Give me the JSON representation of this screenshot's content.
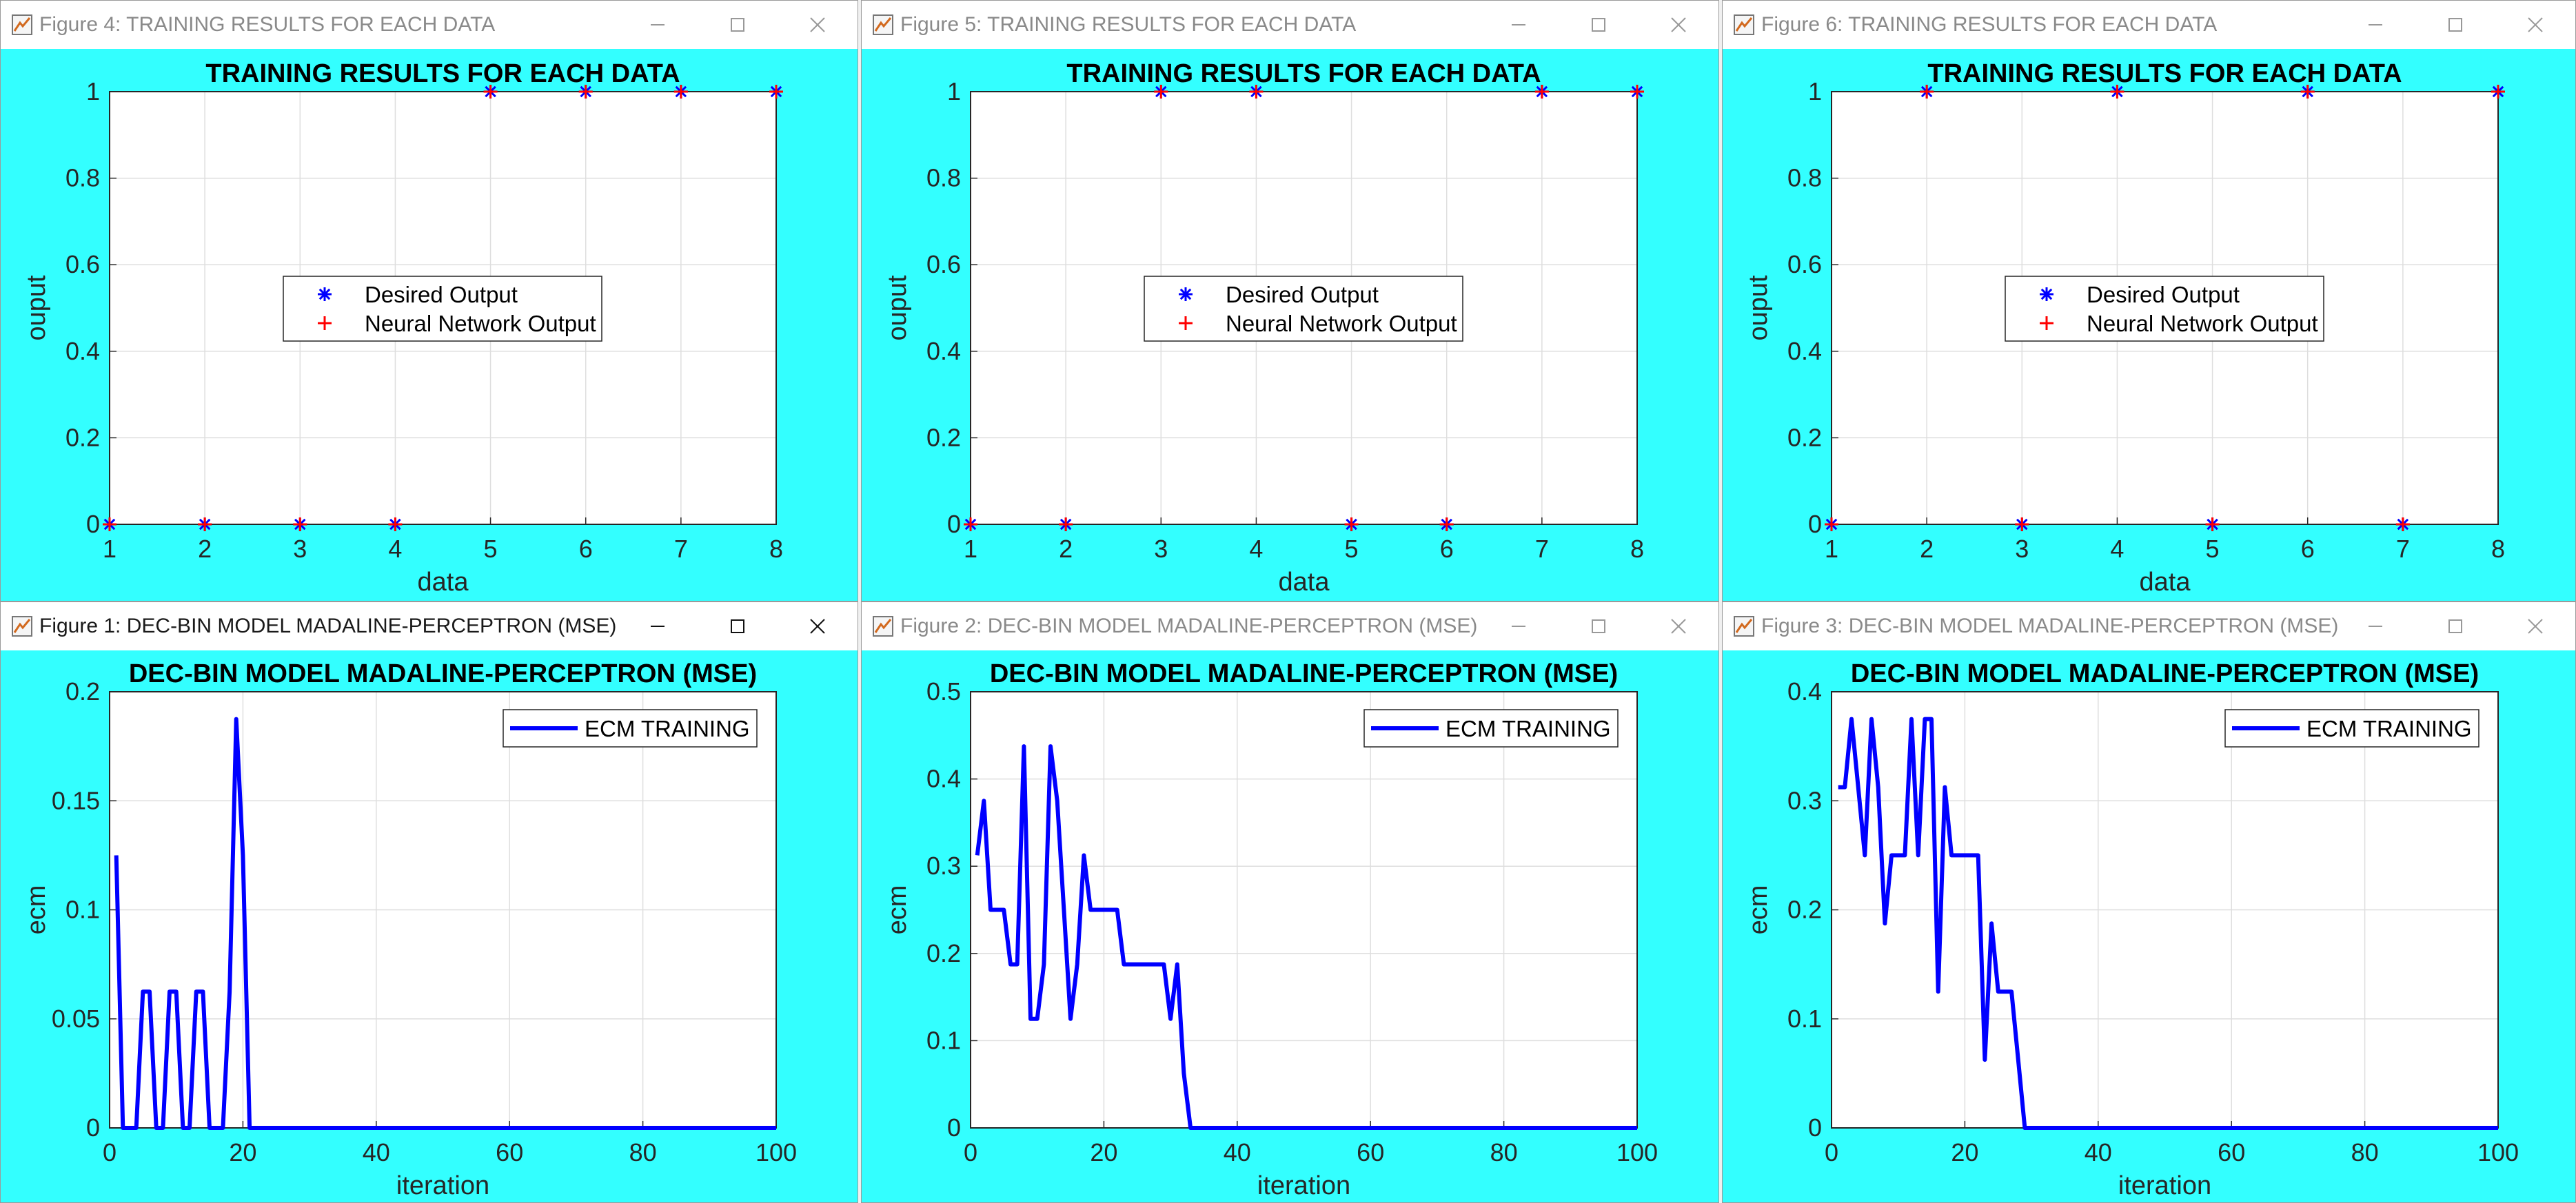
{
  "windows": [
    {
      "id": "fig4",
      "active": false,
      "title": "Figure 4: TRAINING RESULTS FOR EACH DATA",
      "plot_title": "TRAINING RESULTS FOR EACH DATA",
      "xlabel": "data",
      "ylabel": "ouput",
      "legend": [
        "Desired Output",
        "Neural Network Output"
      ],
      "x_ticks": [
        "1",
        "2",
        "3",
        "4",
        "5",
        "6",
        "7",
        "8"
      ],
      "y_ticks": [
        "0",
        "0.2",
        "0.4",
        "0.6",
        "0.8",
        "1"
      ]
    },
    {
      "id": "fig5",
      "active": false,
      "title": "Figure 5: TRAINING RESULTS FOR EACH DATA",
      "plot_title": "TRAINING RESULTS FOR EACH DATA",
      "xlabel": "data",
      "ylabel": "ouput",
      "legend": [
        "Desired Output",
        "Neural Network Output"
      ],
      "x_ticks": [
        "1",
        "2",
        "3",
        "4",
        "5",
        "6",
        "7",
        "8"
      ],
      "y_ticks": [
        "0",
        "0.2",
        "0.4",
        "0.6",
        "0.8",
        "1"
      ]
    },
    {
      "id": "fig6",
      "active": false,
      "title": "Figure 6: TRAINING RESULTS FOR EACH DATA",
      "plot_title": "TRAINING RESULTS FOR EACH DATA",
      "xlabel": "data",
      "ylabel": "ouput",
      "legend": [
        "Desired Output",
        "Neural Network Output"
      ],
      "x_ticks": [
        "1",
        "2",
        "3",
        "4",
        "5",
        "6",
        "7",
        "8"
      ],
      "y_ticks": [
        "0",
        "0.2",
        "0.4",
        "0.6",
        "0.8",
        "1"
      ]
    },
    {
      "id": "fig1",
      "active": true,
      "title": "Figure 1: DEC-BIN MODEL MADALINE-PERCEPTRON (MSE)",
      "plot_title": "DEC-BIN MODEL MADALINE-PERCEPTRON (MSE)",
      "xlabel": "iteration",
      "ylabel": "ecm",
      "legend": [
        "ECM TRAINING"
      ],
      "x_ticks": [
        "0",
        "20",
        "40",
        "60",
        "80",
        "100"
      ],
      "y_ticks": [
        "0",
        "0.05",
        "0.1",
        "0.15",
        "0.2"
      ]
    },
    {
      "id": "fig2",
      "active": false,
      "title": "Figure 2: DEC-BIN MODEL MADALINE-PERCEPTRON (MSE)",
      "plot_title": "DEC-BIN MODEL MADALINE-PERCEPTRON (MSE)",
      "xlabel": "iteration",
      "ylabel": "ecm",
      "legend": [
        "ECM TRAINING"
      ],
      "x_ticks": [
        "0",
        "20",
        "40",
        "60",
        "80",
        "100"
      ],
      "y_ticks": [
        "0",
        "0.1",
        "0.2",
        "0.3",
        "0.4",
        "0.5"
      ]
    },
    {
      "id": "fig3",
      "active": false,
      "title": "Figure 3: DEC-BIN MODEL MADALINE-PERCEPTRON (MSE)",
      "plot_title": "DEC-BIN MODEL MADALINE-PERCEPTRON (MSE)",
      "xlabel": "iteration",
      "ylabel": "ecm",
      "legend": [
        "ECM TRAINING"
      ],
      "x_ticks": [
        "0",
        "20",
        "40",
        "60",
        "80",
        "100"
      ],
      "y_ticks": [
        "0",
        "0.1",
        "0.2",
        "0.3",
        "0.4"
      ]
    }
  ],
  "colors": {
    "figure_bg": "#33ffff",
    "axes_bg": "#ffffff",
    "grid": "#dedede",
    "desired": "#0000ff",
    "nn_output": "#ff0000",
    "ecm_line": "#0000ff"
  },
  "icons": {
    "app": "matlab-figure-icon",
    "minimize": "minimize-icon",
    "maximize": "maximize-icon",
    "close": "close-icon",
    "desired_marker": "asterisk-marker",
    "nn_marker": "plus-marker"
  },
  "chart_data": [
    {
      "figure": "fig4",
      "type": "scatter",
      "title": "TRAINING RESULTS FOR EACH DATA",
      "xlabel": "data",
      "ylabel": "ouput",
      "xlim": [
        1,
        8
      ],
      "ylim": [
        0,
        1
      ],
      "grid": true,
      "legend_position": "center",
      "x": [
        1,
        2,
        3,
        4,
        5,
        6,
        7,
        8
      ],
      "series": [
        {
          "name": "Desired Output",
          "marker": "asterisk",
          "color": "#0000ff",
          "values": [
            0,
            0,
            0,
            0,
            1,
            1,
            1,
            1
          ]
        },
        {
          "name": "Neural Network Output",
          "marker": "plus",
          "color": "#ff0000",
          "values": [
            0,
            0,
            0,
            0,
            1,
            1,
            1,
            1
          ]
        }
      ]
    },
    {
      "figure": "fig5",
      "type": "scatter",
      "title": "TRAINING RESULTS FOR EACH DATA",
      "xlabel": "data",
      "ylabel": "ouput",
      "xlim": [
        1,
        8
      ],
      "ylim": [
        0,
        1
      ],
      "grid": true,
      "legend_position": "center",
      "x": [
        1,
        2,
        3,
        4,
        5,
        6,
        7,
        8
      ],
      "series": [
        {
          "name": "Desired Output",
          "marker": "asterisk",
          "color": "#0000ff",
          "values": [
            0,
            0,
            1,
            1,
            0,
            0,
            1,
            1
          ]
        },
        {
          "name": "Neural Network Output",
          "marker": "plus",
          "color": "#ff0000",
          "values": [
            0,
            0,
            1,
            1,
            0,
            0,
            1,
            1
          ]
        }
      ]
    },
    {
      "figure": "fig6",
      "type": "scatter",
      "title": "TRAINING RESULTS FOR EACH DATA",
      "xlabel": "data",
      "ylabel": "ouput",
      "xlim": [
        1,
        8
      ],
      "ylim": [
        0,
        1
      ],
      "grid": true,
      "legend_position": "center",
      "x": [
        1,
        2,
        3,
        4,
        5,
        6,
        7,
        8
      ],
      "series": [
        {
          "name": "Desired Output",
          "marker": "asterisk",
          "color": "#0000ff",
          "values": [
            0,
            1,
            0,
            1,
            0,
            1,
            0,
            1
          ]
        },
        {
          "name": "Neural Network Output",
          "marker": "plus",
          "color": "#ff0000",
          "values": [
            0,
            1,
            0,
            1,
            0,
            1,
            0,
            1
          ]
        }
      ]
    },
    {
      "figure": "fig1",
      "type": "line",
      "title": "DEC-BIN MODEL MADALINE-PERCEPTRON (MSE)",
      "xlabel": "iteration",
      "ylabel": "ecm",
      "xlim": [
        0,
        100
      ],
      "ylim": [
        0,
        0.2
      ],
      "grid": true,
      "legend_position": "top-right",
      "series": [
        {
          "name": "ECM TRAINING",
          "color": "#0000ff",
          "x": [
            1,
            2,
            4,
            5,
            6,
            7,
            8,
            9,
            10,
            11,
            12,
            13,
            14,
            15,
            16,
            17,
            18,
            19,
            20,
            21,
            22,
            100
          ],
          "values": [
            0.125,
            0,
            0,
            0.0625,
            0.0625,
            0,
            0,
            0.0625,
            0.0625,
            0,
            0,
            0.0625,
            0.0625,
            0,
            0,
            0,
            0.0625,
            0.1875,
            0.125,
            0,
            0,
            0
          ]
        }
      ]
    },
    {
      "figure": "fig2",
      "type": "line",
      "title": "DEC-BIN MODEL MADALINE-PERCEPTRON (MSE)",
      "xlabel": "iteration",
      "ylabel": "ecm",
      "xlim": [
        0,
        100
      ],
      "ylim": [
        0,
        0.5
      ],
      "grid": true,
      "legend_position": "top-right",
      "series": [
        {
          "name": "ECM TRAINING",
          "color": "#0000ff",
          "x": [
            1,
            2,
            3,
            4,
            5,
            6,
            7,
            8,
            9,
            10,
            11,
            12,
            13,
            14,
            15,
            16,
            17,
            18,
            19,
            20,
            21,
            22,
            23,
            24,
            25,
            26,
            27,
            28,
            29,
            30,
            31,
            32,
            33,
            100
          ],
          "values": [
            0.3125,
            0.375,
            0.25,
            0.25,
            0.25,
            0.1875,
            0.1875,
            0.4375,
            0.125,
            0.125,
            0.1875,
            0.4375,
            0.375,
            0.25,
            0.125,
            0.1875,
            0.3125,
            0.25,
            0.25,
            0.25,
            0.25,
            0.25,
            0.1875,
            0.1875,
            0.1875,
            0.1875,
            0.1875,
            0.1875,
            0.1875,
            0.125,
            0.1875,
            0.0625,
            0,
            0
          ]
        }
      ]
    },
    {
      "figure": "fig3",
      "type": "line",
      "title": "DEC-BIN MODEL MADALINE-PERCEPTRON (MSE)",
      "xlabel": "iteration",
      "ylabel": "ecm",
      "xlim": [
        0,
        100
      ],
      "ylim": [
        0,
        0.4
      ],
      "grid": true,
      "legend_position": "top-right",
      "series": [
        {
          "name": "ECM TRAINING",
          "color": "#0000ff",
          "x": [
            1,
            2,
            3,
            4,
            5,
            6,
            7,
            8,
            9,
            10,
            11,
            12,
            13,
            14,
            15,
            16,
            17,
            18,
            19,
            20,
            21,
            22,
            23,
            24,
            25,
            26,
            27,
            28,
            29,
            100
          ],
          "values": [
            0.3125,
            0.3125,
            0.375,
            0.3125,
            0.25,
            0.375,
            0.3125,
            0.1875,
            0.25,
            0.25,
            0.25,
            0.375,
            0.25,
            0.375,
            0.375,
            0.125,
            0.3125,
            0.25,
            0.25,
            0.25,
            0.25,
            0.25,
            0.0625,
            0.1875,
            0.125,
            0.125,
            0.125,
            0.0625,
            0,
            0
          ]
        }
      ]
    }
  ]
}
